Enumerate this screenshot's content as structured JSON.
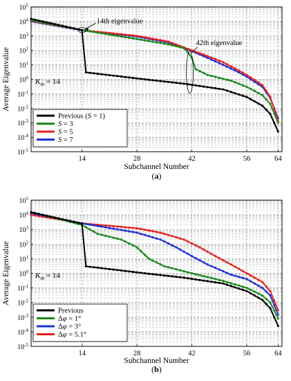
{
  "chart_data": [
    {
      "type": "line",
      "panel_label": "(a)",
      "xlabel": "Subchannel Number",
      "ylabel": "Average Eigenvalue",
      "ylog": true,
      "xlim": [
        1,
        65
      ],
      "ylim": [
        1e-05,
        100000.0
      ],
      "xticks": [
        14,
        28,
        42,
        56,
        64
      ],
      "yticks": [
        -5,
        -4,
        -3,
        -2,
        -1,
        0,
        1,
        2,
        3,
        4,
        5
      ],
      "annotations": [
        {
          "text": "14th eigenvalue",
          "x": 14,
          "y": 2500.0
        },
        {
          "text": "42th eigenvalue",
          "x": 42,
          "y": 70
        },
        {
          "text": "K",
          "sub": "m",
          "suffix": " = 14"
        }
      ],
      "legend_position": "lower-left",
      "series": [
        {
          "label": "Previous (S = 1)",
          "color": "#000000",
          "points": [
            [
              1,
              15000
            ],
            [
              14,
              2500
            ],
            [
              14,
              2000
            ],
            [
              15,
              3
            ],
            [
              30,
              1
            ],
            [
              40,
              0.5
            ],
            [
              50,
              0.2
            ],
            [
              56,
              0.06
            ],
            [
              60,
              0.015
            ],
            [
              62,
              0.004
            ],
            [
              64,
              0.00025
            ]
          ]
        },
        {
          "label": "S = 3",
          "color": "#1a8a1a",
          "points": [
            [
              1,
              12000
            ],
            [
              14,
              2500
            ],
            [
              28,
              600
            ],
            [
              36,
              260
            ],
            [
              40,
              140
            ],
            [
              41,
              70
            ],
            [
              42,
              30
            ],
            [
              43,
              5
            ],
            [
              46,
              2
            ],
            [
              52,
              0.8
            ],
            [
              56,
              0.3
            ],
            [
              60,
              0.08
            ],
            [
              62,
              0.02
            ],
            [
              64,
              0.001
            ]
          ]
        },
        {
          "label": "S = 5",
          "color": "#e8201a",
          "points": [
            [
              1,
              11000
            ],
            [
              14,
              2500
            ],
            [
              28,
              1000
            ],
            [
              36,
              400
            ],
            [
              42,
              100
            ],
            [
              46,
              40
            ],
            [
              50,
              15
            ],
            [
              54,
              4
            ],
            [
              56,
              2
            ],
            [
              60,
              0.4
            ],
            [
              62,
              0.06
            ],
            [
              64,
              0.0013
            ]
          ]
        },
        {
          "label": "S = 7",
          "color": "#1f2fd6",
          "points": [
            [
              1,
              10000
            ],
            [
              14,
              2400
            ],
            [
              28,
              900
            ],
            [
              36,
              350
            ],
            [
              42,
              90
            ],
            [
              46,
              30
            ],
            [
              50,
              10
            ],
            [
              54,
              3
            ],
            [
              56,
              1.5
            ],
            [
              60,
              0.3
            ],
            [
              62,
              0.05
            ],
            [
              64,
              0.002
            ]
          ]
        }
      ]
    },
    {
      "type": "line",
      "panel_label": "(b)",
      "xlabel": "Subchannel Number",
      "ylabel": "Average Eigenvalue",
      "ylog": true,
      "xlim": [
        1,
        65
      ],
      "ylim": [
        1e-05,
        100000.0
      ],
      "xticks": [
        14,
        28,
        42,
        56,
        64
      ],
      "yticks": [
        -5,
        -4,
        -3,
        -2,
        -1,
        0,
        1,
        2,
        3,
        4,
        5
      ],
      "annotations": [
        {
          "text": "K",
          "sub": "m",
          "suffix": " = 14"
        }
      ],
      "legend_position": "lower-left",
      "series": [
        {
          "label": "Previous",
          "color": "#000000",
          "points": [
            [
              1,
              15000
            ],
            [
              14,
              2500
            ],
            [
              14,
              2000
            ],
            [
              15,
              3
            ],
            [
              30,
              1
            ],
            [
              40,
              0.5
            ],
            [
              50,
              0.2
            ],
            [
              56,
              0.06
            ],
            [
              60,
              0.015
            ],
            [
              62,
              0.004
            ],
            [
              64,
              0.00025
            ]
          ]
        },
        {
          "label": "Δφ = 1°",
          "color": "#1a8a1a",
          "points": [
            [
              1,
              16000
            ],
            [
              14,
              2000
            ],
            [
              18,
              500
            ],
            [
              24,
              200
            ],
            [
              28,
              60
            ],
            [
              31,
              10
            ],
            [
              35,
              3
            ],
            [
              42,
              1
            ],
            [
              50,
              0.3
            ],
            [
              56,
              0.1
            ],
            [
              60,
              0.03
            ],
            [
              62,
              0.01
            ],
            [
              64,
              0.0008
            ]
          ]
        },
        {
          "label": "Δφ = 3°",
          "color": "#1f2fd6",
          "points": [
            [
              1,
              13000
            ],
            [
              14,
              2600
            ],
            [
              28,
              600
            ],
            [
              34,
              200
            ],
            [
              38,
              60
            ],
            [
              42,
              15
            ],
            [
              46,
              4
            ],
            [
              52,
              0.8
            ],
            [
              56,
              0.4
            ],
            [
              60,
              0.1
            ],
            [
              62,
              0.03
            ],
            [
              64,
              0.0015
            ]
          ]
        },
        {
          "label": "Δφ = 5.1°",
          "color": "#e8201a",
          "points": [
            [
              1,
              10000
            ],
            [
              14,
              2600
            ],
            [
              28,
              1200
            ],
            [
              34,
              600
            ],
            [
              40,
              200
            ],
            [
              44,
              60
            ],
            [
              48,
              15
            ],
            [
              52,
              4
            ],
            [
              56,
              1
            ],
            [
              60,
              0.25
            ],
            [
              62,
              0.06
            ],
            [
              64,
              0.003
            ]
          ]
        }
      ]
    }
  ]
}
